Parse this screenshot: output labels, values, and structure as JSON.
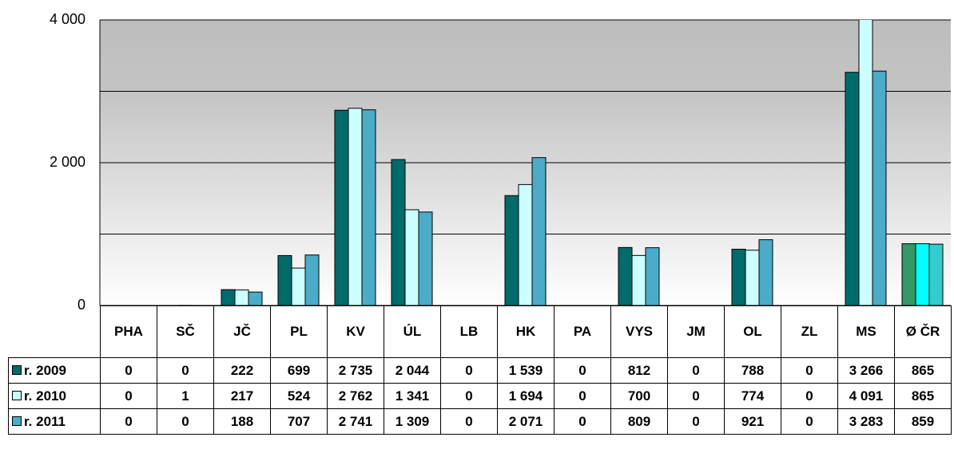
{
  "chart_data": {
    "type": "bar",
    "categories": [
      "PHA",
      "SČ",
      "JČ",
      "PL",
      "KV",
      "ÚL",
      "LB",
      "HK",
      "PA",
      "VYS",
      "JM",
      "OL",
      "ZL",
      "MS",
      "Ø ČR"
    ],
    "series": [
      {
        "name": "r. 2009",
        "color": "#006b6b",
        "avg_color": "#339966",
        "values": [
          0,
          0,
          222,
          699,
          2735,
          2044,
          0,
          1539,
          0,
          812,
          0,
          788,
          0,
          3266,
          865
        ],
        "value_labels": [
          "0",
          "0",
          "222",
          "699",
          "2 735",
          "2 044",
          "0",
          "1 539",
          "0",
          "812",
          "0",
          "788",
          "0",
          "3 266",
          "865"
        ]
      },
      {
        "name": "r. 2010",
        "color": "#ccffff",
        "avg_color": "#00ffff",
        "values": [
          0,
          1,
          217,
          524,
          2762,
          1341,
          0,
          1694,
          0,
          700,
          0,
          774,
          0,
          4091,
          865
        ],
        "value_labels": [
          "0",
          "1",
          "217",
          "524",
          "2 762",
          "1 341",
          "0",
          "1 694",
          "0",
          "700",
          "0",
          "774",
          "0",
          "4 091",
          "865"
        ]
      },
      {
        "name": "r. 2011",
        "color": "#4babc8",
        "avg_color": "#33cccc",
        "values": [
          0,
          0,
          188,
          707,
          2741,
          1309,
          0,
          2071,
          0,
          809,
          0,
          921,
          0,
          3283,
          859
        ],
        "value_labels": [
          "0",
          "0",
          "188",
          "707",
          "2 741",
          "1 309",
          "0",
          "2 071",
          "0",
          "809",
          "0",
          "921",
          "0",
          "3 283",
          "859"
        ]
      }
    ],
    "ylim": [
      0,
      4000
    ],
    "yticks": [
      0,
      {
        "value": 2000,
        "label": "2 000"
      },
      {
        "value": 4000,
        "label": "4 000"
      }
    ],
    "minor_yticks": [
      1000,
      3000
    ],
    "grid": true
  }
}
